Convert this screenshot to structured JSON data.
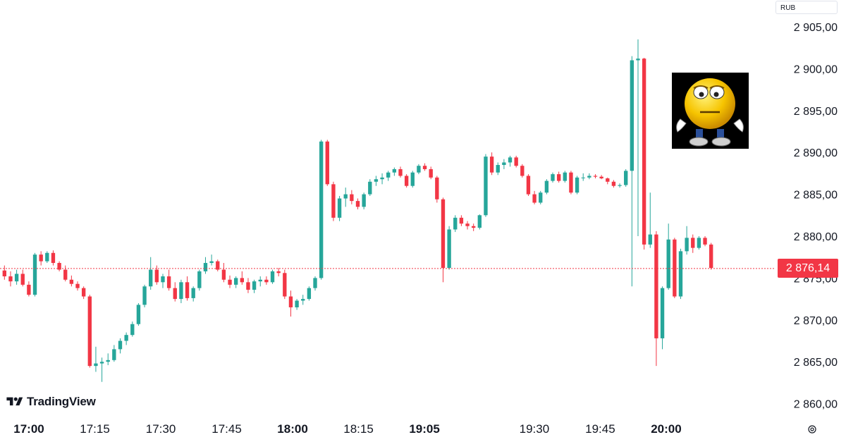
{
  "app": {
    "brand": "TradingView",
    "currency": "RUB"
  },
  "colors": {
    "up": "#26a69a",
    "down": "#f23645",
    "price_line": "#f23645",
    "text": "#131722"
  },
  "current_price_label": "2 876,14",
  "chart_data": {
    "type": "candlestick",
    "title": "",
    "y_axis": {
      "side": "right",
      "ylim": [
        2857.5,
        2908.0
      ],
      "ticks": [
        "2 905,00",
        "2 900,00",
        "2 895,00",
        "2 890,00",
        "2 885,00",
        "2 880,00",
        "2 875,00",
        "2 870,00",
        "2 865,00",
        "2 860,00"
      ],
      "tick_values": [
        2905,
        2900,
        2895,
        2890,
        2885,
        2880,
        2875,
        2870,
        2865,
        2860
      ]
    },
    "x_axis": {
      "ticks": [
        {
          "label": "17:00",
          "bold": true,
          "minute": 0
        },
        {
          "label": "17:15",
          "bold": false,
          "minute": 15
        },
        {
          "label": "17:30",
          "bold": false,
          "minute": 30
        },
        {
          "label": "17:45",
          "bold": false,
          "minute": 45
        },
        {
          "label": "18:00",
          "bold": true,
          "minute": 60
        },
        {
          "label": "18:15",
          "bold": false,
          "minute": 75
        },
        {
          "label": "19:05",
          "bold": true,
          "minute": 90
        },
        {
          "label": "19:30",
          "bold": false,
          "minute": 115
        },
        {
          "label": "19:45",
          "bold": false,
          "minute": 130
        },
        {
          "label": "20:00",
          "bold": true,
          "minute": 145
        }
      ]
    },
    "current_price": 2876.14,
    "grid": false,
    "legend": "none",
    "interval_minutes": 0.5,
    "ohlc": [
      [
        2875.9,
        2876.5,
        2874.8,
        2875.2
      ],
      [
        2875.2,
        2875.8,
        2874.0,
        2874.6
      ],
      [
        2874.6,
        2876.0,
        2874.2,
        2875.5
      ],
      [
        2875.5,
        2876.0,
        2874.0,
        2874.2
      ],
      [
        2874.2,
        2874.6,
        2872.8,
        2873.0
      ],
      [
        2873.0,
        2878.0,
        2872.8,
        2877.8
      ],
      [
        2877.8,
        2878.2,
        2876.5,
        2877.0
      ],
      [
        2877.0,
        2878.2,
        2876.8,
        2878.0
      ],
      [
        2878.0,
        2878.3,
        2876.5,
        2876.8
      ],
      [
        2876.8,
        2877.0,
        2875.8,
        2876.0
      ],
      [
        2876.0,
        2876.5,
        2874.6,
        2874.8
      ],
      [
        2874.8,
        2875.3,
        2874.0,
        2874.3
      ],
      [
        2874.3,
        2874.6,
        2873.5,
        2873.8
      ],
      [
        2873.8,
        2874.0,
        2872.5,
        2872.8
      ],
      [
        2872.8,
        2873.0,
        2864.3,
        2864.5
      ],
      [
        2864.5,
        2866.8,
        2863.8,
        2864.8
      ],
      [
        2864.8,
        2865.5,
        2862.6,
        2865.0
      ],
      [
        2865.0,
        2866.0,
        2864.6,
        2865.2
      ],
      [
        2865.2,
        2867.0,
        2865.0,
        2866.5
      ],
      [
        2866.5,
        2867.8,
        2866.0,
        2867.5
      ],
      [
        2867.5,
        2868.5,
        2867.0,
        2868.2
      ],
      [
        2868.2,
        2869.8,
        2868.0,
        2869.5
      ],
      [
        2869.5,
        2872.0,
        2869.3,
        2871.8
      ],
      [
        2871.8,
        2874.2,
        2871.5,
        2874.0
      ],
      [
        2874.0,
        2877.5,
        2873.6,
        2876.0
      ],
      [
        2876.0,
        2876.5,
        2874.2,
        2874.5
      ],
      [
        2874.5,
        2875.5,
        2873.8,
        2875.2
      ],
      [
        2875.2,
        2876.0,
        2873.5,
        2873.8
      ],
      [
        2873.8,
        2874.5,
        2872.2,
        2872.5
      ],
      [
        2872.5,
        2874.8,
        2872.0,
        2874.5
      ],
      [
        2874.5,
        2875.2,
        2872.3,
        2872.6
      ],
      [
        2872.6,
        2874.0,
        2872.2,
        2873.8
      ],
      [
        2873.8,
        2876.0,
        2873.5,
        2875.8
      ],
      [
        2875.8,
        2877.5,
        2875.5,
        2876.8
      ],
      [
        2876.8,
        2877.8,
        2876.5,
        2877.0
      ],
      [
        2877.0,
        2877.2,
        2875.8,
        2876.0
      ],
      [
        2876.0,
        2876.8,
        2874.5,
        2874.8
      ],
      [
        2874.8,
        2875.3,
        2873.8,
        2874.2
      ],
      [
        2874.2,
        2875.2,
        2873.8,
        2875.0
      ],
      [
        2875.0,
        2875.8,
        2874.2,
        2874.5
      ],
      [
        2874.5,
        2875.0,
        2873.2,
        2873.6
      ],
      [
        2873.6,
        2874.8,
        2873.2,
        2874.6
      ],
      [
        2874.6,
        2875.2,
        2874.0,
        2874.8
      ],
      [
        2874.8,
        2875.2,
        2874.2,
        2874.5
      ],
      [
        2874.5,
        2876.0,
        2874.3,
        2875.8
      ],
      [
        2875.8,
        2876.2,
        2875.2,
        2875.6
      ],
      [
        2875.6,
        2876.0,
        2872.5,
        2872.8
      ],
      [
        2872.8,
        2873.5,
        2870.4,
        2871.5
      ],
      [
        2871.5,
        2872.5,
        2871.2,
        2872.3
      ],
      [
        2872.3,
        2873.0,
        2871.8,
        2872.5
      ],
      [
        2872.5,
        2874.0,
        2872.3,
        2873.8
      ],
      [
        2873.8,
        2875.2,
        2873.5,
        2875.0
      ],
      [
        2875.0,
        2891.5,
        2874.8,
        2891.3
      ],
      [
        2891.3,
        2891.5,
        2886.0,
        2886.2
      ],
      [
        2886.2,
        2886.5,
        2881.8,
        2882.2
      ],
      [
        2882.2,
        2884.8,
        2881.8,
        2884.5
      ],
      [
        2884.5,
        2885.8,
        2883.5,
        2885.0
      ],
      [
        2885.0,
        2885.5,
        2883.8,
        2884.2
      ],
      [
        2884.2,
        2884.5,
        2883.2,
        2883.5
      ],
      [
        2883.5,
        2885.2,
        2883.2,
        2885.0
      ],
      [
        2885.0,
        2886.8,
        2884.8,
        2886.5
      ],
      [
        2886.5,
        2887.2,
        2886.0,
        2886.8
      ],
      [
        2886.8,
        2887.5,
        2886.2,
        2887.0
      ],
      [
        2887.0,
        2887.8,
        2886.6,
        2887.6
      ],
      [
        2887.6,
        2888.2,
        2887.2,
        2888.0
      ],
      [
        2888.0,
        2888.3,
        2887.0,
        2887.2
      ],
      [
        2887.2,
        2887.4,
        2885.8,
        2886.0
      ],
      [
        2886.0,
        2887.8,
        2885.8,
        2887.6
      ],
      [
        2887.6,
        2888.6,
        2887.4,
        2888.4
      ],
      [
        2888.4,
        2888.7,
        2887.8,
        2888.0
      ],
      [
        2888.0,
        2888.3,
        2886.8,
        2887.0
      ],
      [
        2887.0,
        2887.2,
        2884.0,
        2884.4
      ],
      [
        2884.4,
        2884.6,
        2874.5,
        2876.2
      ],
      [
        2876.2,
        2881.2,
        2876.0,
        2880.8
      ],
      [
        2880.8,
        2882.5,
        2880.5,
        2882.2
      ],
      [
        2882.2,
        2882.5,
        2881.2,
        2881.5
      ],
      [
        2881.5,
        2881.8,
        2880.8,
        2881.2
      ],
      [
        2881.2,
        2881.5,
        2880.6,
        2881.0
      ],
      [
        2881.0,
        2882.6,
        2880.8,
        2882.5
      ],
      [
        2882.5,
        2889.8,
        2882.3,
        2889.5
      ],
      [
        2889.5,
        2890.0,
        2887.3,
        2887.6
      ],
      [
        2887.6,
        2888.8,
        2887.3,
        2888.5
      ],
      [
        2888.5,
        2889.2,
        2888.0,
        2888.8
      ],
      [
        2888.8,
        2889.6,
        2888.3,
        2889.4
      ],
      [
        2889.4,
        2889.6,
        2888.2,
        2888.4
      ],
      [
        2888.4,
        2888.6,
        2887.0,
        2887.2
      ],
      [
        2887.2,
        2887.4,
        2884.8,
        2885.0
      ],
      [
        2885.0,
        2885.4,
        2883.8,
        2884.0
      ],
      [
        2884.0,
        2885.4,
        2883.8,
        2885.2
      ],
      [
        2885.2,
        2886.8,
        2885.0,
        2886.6
      ],
      [
        2886.6,
        2887.6,
        2886.4,
        2887.4
      ],
      [
        2887.4,
        2887.7,
        2886.4,
        2886.6
      ],
      [
        2886.6,
        2887.8,
        2886.4,
        2887.6
      ],
      [
        2887.6,
        2887.8,
        2885.0,
        2885.2
      ],
      [
        2885.2,
        2887.2,
        2885.0,
        2887.0
      ],
      [
        2887.0,
        2887.5,
        2886.6,
        2887.0
      ],
      [
        2887.0,
        2887.5,
        2886.8,
        2887.2
      ],
      [
        2887.2,
        2887.4,
        2886.9,
        2887.1
      ],
      [
        2887.1,
        2887.3,
        2886.8,
        2886.9
      ],
      [
        2886.9,
        2887.0,
        2886.2,
        2886.5
      ],
      [
        2886.5,
        2886.7,
        2885.8,
        2886.0
      ],
      [
        2886.0,
        2886.3,
        2885.8,
        2886.1
      ],
      [
        2886.1,
        2888.0,
        2885.9,
        2887.8
      ],
      [
        2887.8,
        2901.5,
        2874.0,
        2901.0
      ],
      [
        2901.0,
        2903.5,
        2880.0,
        2901.2
      ],
      [
        2901.2,
        2901.3,
        2878.4,
        2879.0
      ],
      [
        2879.0,
        2885.2,
        2878.6,
        2880.2
      ],
      [
        2880.2,
        2880.6,
        2864.5,
        2867.8
      ],
      [
        2867.8,
        2874.0,
        2866.5,
        2873.8
      ],
      [
        2873.8,
        2881.5,
        2873.6,
        2879.6
      ],
      [
        2879.6,
        2879.8,
        2872.6,
        2872.8
      ],
      [
        2872.8,
        2878.5,
        2872.5,
        2878.2
      ],
      [
        2878.2,
        2881.2,
        2877.8,
        2879.8
      ],
      [
        2879.8,
        2880.2,
        2878.0,
        2878.6
      ],
      [
        2878.6,
        2880.0,
        2878.4,
        2879.8
      ],
      [
        2879.8,
        2880.0,
        2878.8,
        2879.0
      ],
      [
        2879.0,
        2879.2,
        2876.0,
        2876.2
      ]
    ]
  }
}
